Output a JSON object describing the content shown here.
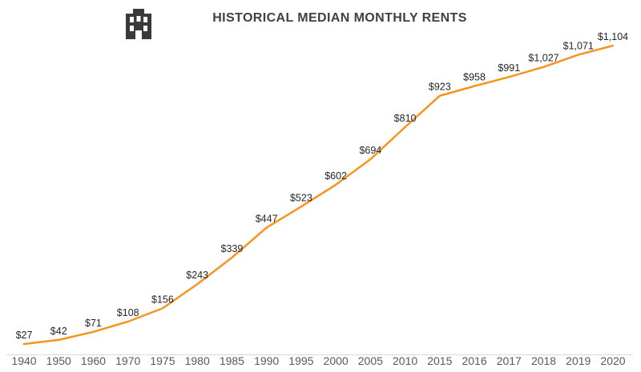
{
  "header": {
    "title": "HISTORICAL MEDIAN MONTHLY RENTS",
    "icon": "building-icon"
  },
  "chart_data": {
    "type": "line",
    "title": "HISTORICAL MEDIAN MONTHLY RENTS",
    "categories": [
      "1940",
      "1950",
      "1960",
      "1970",
      "1975",
      "1980",
      "1985",
      "1990",
      "1995",
      "2000",
      "2005",
      "2010",
      "2015",
      "2016",
      "2017",
      "2018",
      "2019",
      "2020"
    ],
    "values": [
      27,
      42,
      71,
      108,
      156,
      243,
      339,
      447,
      523,
      602,
      694,
      810,
      923,
      958,
      991,
      1027,
      1071,
      1104
    ],
    "point_labels": [
      "$27",
      "$42",
      "$71",
      "$108",
      "$156",
      "$243",
      "$339",
      "$447",
      "$523",
      "$602",
      "$694",
      "$810",
      "$923",
      "$958",
      "$991",
      "$1,027",
      "$1,071",
      "$1,104"
    ],
    "xlabel": "",
    "ylabel": "",
    "ylim": [
      0,
      1200
    ],
    "grid": false,
    "legend": "none",
    "data_labels": "above",
    "colors": {
      "line": "#F7941E",
      "point_label": "#262626",
      "axis_text": "#595959",
      "axis_line": "#D9D9D9",
      "title": "#404040",
      "icon": "#3A3A3A",
      "background": "#FFFFFF"
    }
  }
}
